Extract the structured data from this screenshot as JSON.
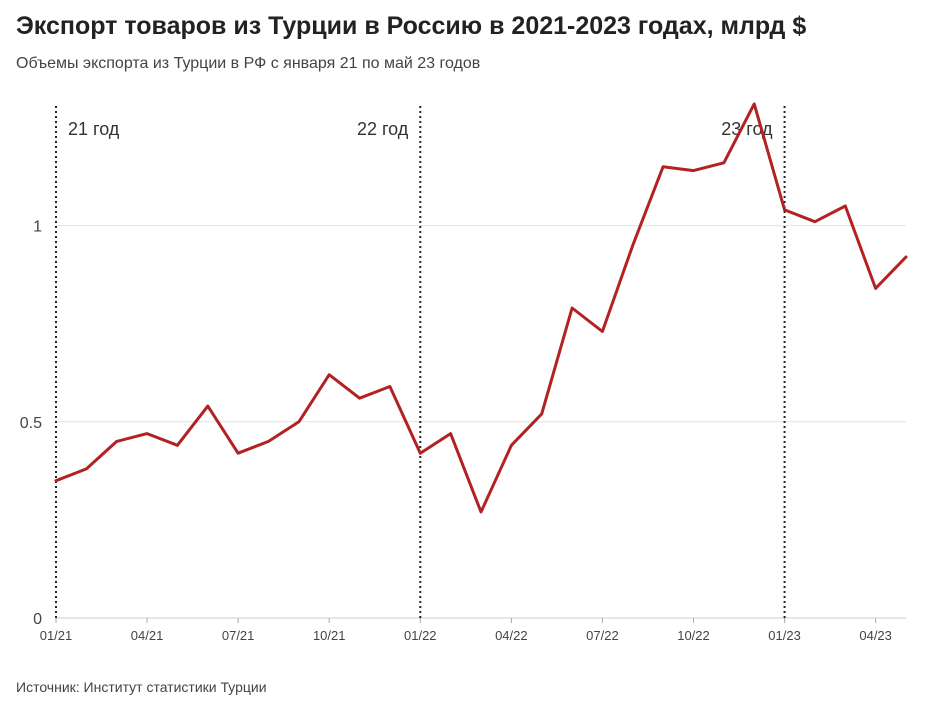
{
  "header": {
    "title": "Экспорт товаров из Турции в Россию в 2021-2023 годах, млрд $",
    "subtitle": "Объемы экспорта из Турции в РФ с января 21 по май 23 годов"
  },
  "footer": {
    "source": "Источник: Институт статистики Турции"
  },
  "chart_data": {
    "type": "line",
    "title": "Экспорт товаров из Турции в Россию в 2021-2023 годах, млрд $",
    "subtitle": "Объемы экспорта из Турции в РФ с января 21 по май 23 годов",
    "xlabel": "",
    "ylabel": "",
    "ylim": [
      0,
      1.32
    ],
    "yticks": [
      0,
      0.5,
      1
    ],
    "ytick_labels": [
      "0",
      "0.5",
      "1"
    ],
    "x": [
      "01/21",
      "02/21",
      "03/21",
      "04/21",
      "05/21",
      "06/21",
      "07/21",
      "08/21",
      "09/21",
      "10/21",
      "11/21",
      "12/21",
      "01/22",
      "02/22",
      "03/22",
      "04/22",
      "05/22",
      "06/22",
      "07/22",
      "08/22",
      "09/22",
      "10/22",
      "11/22",
      "12/22",
      "01/23",
      "02/23",
      "03/23",
      "04/23",
      "05/23"
    ],
    "xticks": [
      "01/21",
      "04/21",
      "07/21",
      "10/21",
      "01/22",
      "04/22",
      "07/22",
      "10/22",
      "01/23",
      "04/23"
    ],
    "series": [
      {
        "color": "#b22222",
        "values": [
          0.35,
          0.38,
          0.45,
          0.47,
          0.44,
          0.54,
          0.42,
          0.45,
          0.5,
          0.62,
          0.56,
          0.59,
          0.42,
          0.47,
          0.27,
          0.44,
          0.52,
          0.79,
          0.73,
          0.95,
          1.15,
          1.14,
          1.16,
          1.31,
          1.04,
          1.01,
          1.05,
          0.84,
          0.92
        ]
      }
    ],
    "annotations": [
      {
        "x": "01/21",
        "label": "21 год"
      },
      {
        "x": "01/22",
        "label": "22 год"
      },
      {
        "x": "01/23",
        "label": "23 год"
      }
    ],
    "grid": true,
    "legend": "none"
  }
}
